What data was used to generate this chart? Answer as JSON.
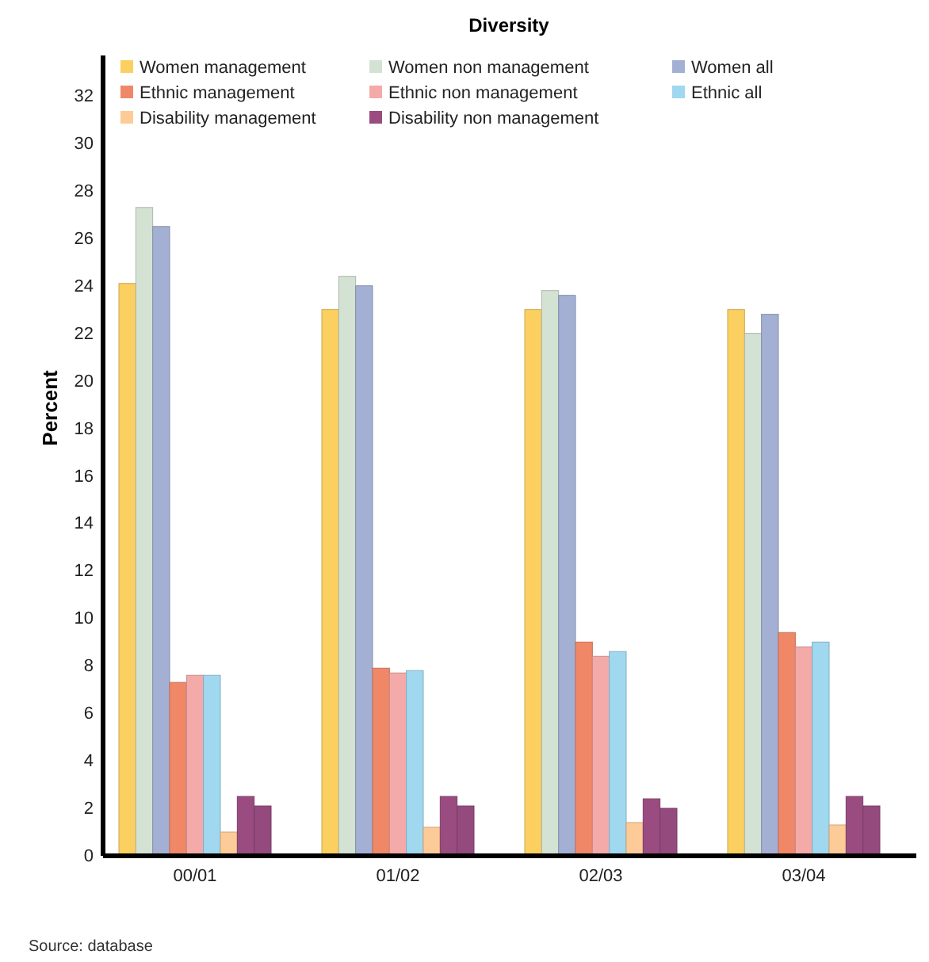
{
  "chart_data": {
    "type": "bar",
    "title": "Diversity",
    "ylabel": "Percent",
    "categories": [
      "00/01",
      "01/02",
      "02/03",
      "03/04"
    ],
    "series": [
      {
        "name": "Women management",
        "color": "#fcd060",
        "values": [
          24.1,
          23.0,
          23.0,
          23.0
        ]
      },
      {
        "name": "Women non management",
        "color": "#d3e2d3",
        "values": [
          27.3,
          24.4,
          23.8,
          22.0
        ]
      },
      {
        "name": "Women all",
        "color": "#a3b0d3",
        "values": [
          26.5,
          24.0,
          23.6,
          22.8
        ]
      },
      {
        "name": "Ethnic management",
        "color": "#f08868",
        "values": [
          7.3,
          7.9,
          9.0,
          9.4
        ]
      },
      {
        "name": "Ethnic non management",
        "color": "#f5aaaa",
        "values": [
          7.6,
          7.7,
          8.4,
          8.8
        ]
      },
      {
        "name": "Ethnic all",
        "color": "#a0d8f0",
        "values": [
          7.6,
          7.8,
          8.6,
          9.0
        ]
      },
      {
        "name": "Disability management",
        "color": "#fccb98",
        "values": [
          1.0,
          1.2,
          1.4,
          1.3
        ]
      },
      {
        "name": "Disability non management",
        "color": "#9a4c80",
        "values": [
          2.5,
          2.5,
          2.4,
          2.5
        ]
      },
      {
        "color": "#944a7c",
        "values": [
          2.1,
          2.1,
          2.0,
          2.1
        ]
      }
    ],
    "ylim": [
      0,
      33.7
    ],
    "yticks": [
      0,
      2,
      4,
      6,
      8,
      10,
      12,
      14,
      16,
      18,
      20,
      22,
      24,
      26,
      28,
      30,
      32
    ],
    "grid": false,
    "legend": "top",
    "annotations": [
      "Source: database"
    ]
  }
}
